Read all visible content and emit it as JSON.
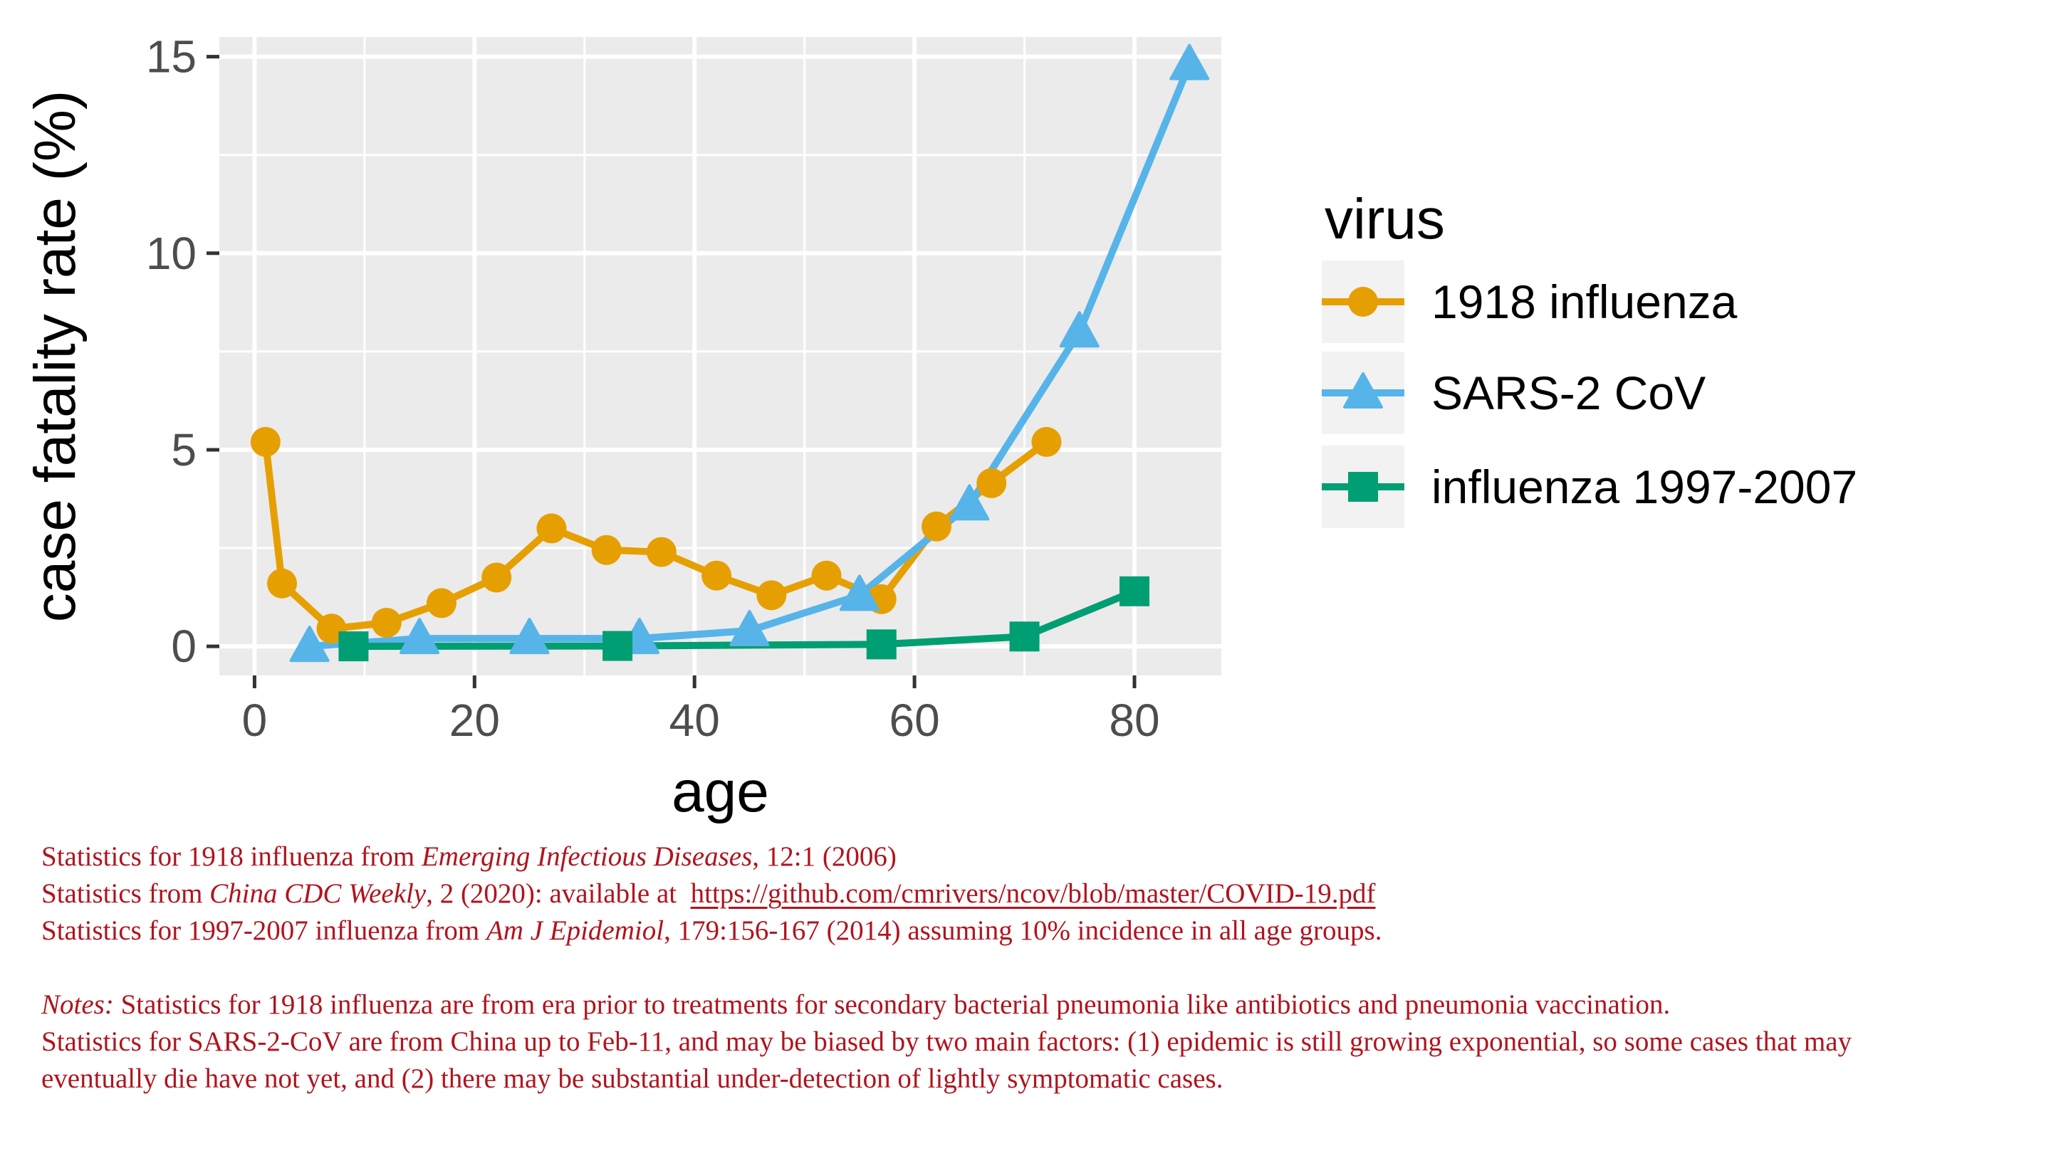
{
  "chart_data": {
    "type": "line",
    "title": "",
    "xlabel": "age",
    "ylabel": "case fatality rate (%)",
    "xlim": [
      -3.2,
      87.9
    ],
    "ylim": [
      -0.74,
      15.5
    ],
    "xticks": [
      0,
      20,
      40,
      60,
      80
    ],
    "yticks": [
      0,
      5,
      10,
      15
    ],
    "xminor": [
      10,
      30,
      50,
      70
    ],
    "yminor": [
      2.5,
      7.5,
      12.5
    ],
    "grid": "on",
    "legend_title": "virus",
    "legend_position": "right",
    "series": [
      {
        "name": "1918 influenza",
        "marker": "circle",
        "color": "#E69F00",
        "x": [
          1,
          2.5,
          7,
          12,
          17,
          22,
          27,
          32,
          37,
          42,
          47,
          52,
          57,
          62,
          67,
          72
        ],
        "y": [
          5.2,
          1.6,
          0.45,
          0.6,
          1.1,
          1.75,
          3.0,
          2.45,
          2.4,
          1.8,
          1.3,
          1.8,
          1.2,
          3.05,
          4.15,
          5.2
        ]
      },
      {
        "name": "SARS-2 CoV",
        "marker": "triangle",
        "color": "#56B4E9",
        "x": [
          5,
          15,
          25,
          35,
          45,
          55,
          65,
          75,
          85
        ],
        "y": [
          0,
          0.2,
          0.2,
          0.2,
          0.4,
          1.3,
          3.6,
          8.0,
          14.8
        ]
      },
      {
        "name": "influenza 1997-2007",
        "marker": "square",
        "color": "#009E73",
        "x": [
          9,
          33,
          57,
          70,
          80
        ],
        "y": [
          0,
          0.01,
          0.05,
          0.25,
          1.4
        ]
      }
    ]
  },
  "colors": {
    "panel_background": "#EBEBEB",
    "gridline": "#FFFFFF",
    "tick_mark": "#333333",
    "tick_label": "#4D4D4D",
    "axis_title": "#000000",
    "legend_key_background": "#F2F2F2",
    "legend_text": "#000000",
    "footnote_red": "#B0141E"
  },
  "footnotes": {
    "lines": [
      [
        {
          "t": "Statistics for 1918 influenza from "
        },
        {
          "t": "Emerging Infectious Diseases",
          "i": true
        },
        {
          "t": ", 12:1 (2006)"
        }
      ],
      [
        {
          "t": "Statistics from "
        },
        {
          "t": "China CDC Weekly",
          "i": true
        },
        {
          "t": ", 2 (2020): available at  "
        },
        {
          "t": "https://github.com/cmrivers/ncov/blob/master/COVID-19.pdf",
          "u": true,
          "link": true
        }
      ],
      [
        {
          "t": "Statistics for 1997-2007 influenza from "
        },
        {
          "t": "Am J Epidemiol",
          "i": true
        },
        {
          "t": ", 179:156-167 (2014) assuming 10% incidence in all age groups."
        }
      ],
      [],
      [
        {
          "t": "Notes:",
          "i": true
        },
        {
          "t": " Statistics for 1918 influenza are from era prior to treatments for secondary bacterial pneumonia like antibiotics and pneumonia vaccination."
        }
      ],
      [
        {
          "t": "Statistics for SARS-2-CoV are from China up to Feb-11, and may be biased by two main factors: (1) epidemic is still growing exponential, so some cases that may"
        }
      ],
      [
        {
          "t": "eventually die have not yet, and (2) there may be substantial under-detection of lightly symptomatic cases."
        }
      ]
    ]
  }
}
